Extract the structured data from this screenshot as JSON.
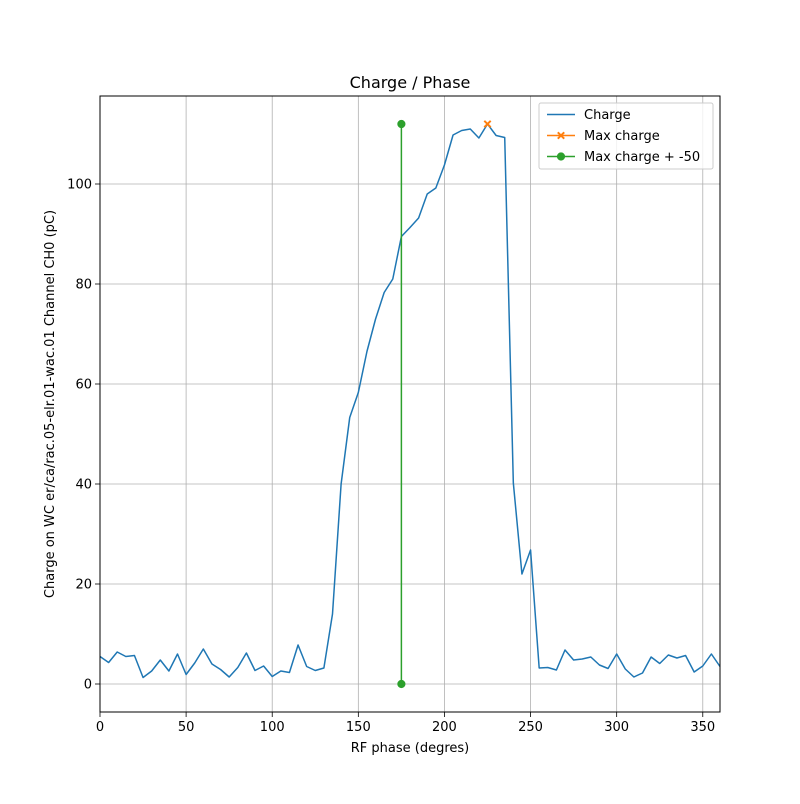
{
  "chart_data": {
    "type": "line",
    "title": "Charge / Phase",
    "xlabel": "RF phase (degres)",
    "ylabel": "Charge on WC er/ca/rac.05-elr.01-wac.01 Channel CH0 (pC)",
    "xlim": [
      0,
      360
    ],
    "ylim": [
      -5.6,
      117.6
    ],
    "x_ticks": [
      0,
      50,
      100,
      150,
      200,
      250,
      300,
      350
    ],
    "y_ticks": [
      0,
      20,
      40,
      60,
      80,
      100
    ],
    "x_tick_labels": [
      "0",
      "50",
      "100",
      "150",
      "200",
      "250",
      "300",
      "350"
    ],
    "y_tick_labels": [
      "0",
      "20",
      "40",
      "60",
      "80",
      "100"
    ],
    "grid": true,
    "legend_position": "top-right",
    "colors": {
      "charge": "#1f77b4",
      "max_charge": "#ff7f0e",
      "max_charge_offset": "#2ca02c",
      "grid": "#b0b0b0"
    },
    "series": [
      {
        "name": "Charge",
        "color": "#1f77b4",
        "marker": "none",
        "x": [
          0,
          5,
          10,
          15,
          20,
          25,
          30,
          35,
          40,
          45,
          50,
          55,
          60,
          65,
          70,
          75,
          80,
          85,
          90,
          95,
          100,
          105,
          110,
          115,
          120,
          125,
          130,
          135,
          140,
          145,
          150,
          155,
          160,
          165,
          170,
          175,
          180,
          185,
          190,
          195,
          200,
          205,
          210,
          215,
          220,
          225,
          230,
          235,
          240,
          245,
          250,
          255,
          260,
          265,
          270,
          275,
          280,
          285,
          290,
          295,
          300,
          305,
          310,
          315,
          320,
          325,
          330,
          335,
          340,
          345,
          350,
          355,
          360
        ],
        "y": [
          5.5,
          4.3,
          6.4,
          5.5,
          5.7,
          1.3,
          2.6,
          4.8,
          2.6,
          6.0,
          1.9,
          4.2,
          7.0,
          4.0,
          2.9,
          1.4,
          3.3,
          6.2,
          2.7,
          3.6,
          1.5,
          2.6,
          2.3,
          7.8,
          3.5,
          2.7,
          3.2,
          14.0,
          40.0,
          53.3,
          58.3,
          66.5,
          73.0,
          78.3,
          81.0,
          89.5,
          91.3,
          93.2,
          98.0,
          99.2,
          103.8,
          109.8,
          110.7,
          111.0,
          109.2,
          112.0,
          109.7,
          109.3,
          40.2,
          22.0,
          26.8,
          3.2,
          3.3,
          2.8,
          6.8,
          4.8,
          5.0,
          5.4,
          3.8,
          3.1,
          6.0,
          3.0,
          1.4,
          2.2,
          5.4,
          4.1,
          5.8,
          5.2,
          5.7,
          2.4,
          3.6,
          6.0,
          3.5
        ]
      },
      {
        "name": "Max charge",
        "color": "#ff7f0e",
        "marker": "x",
        "x": [
          225
        ],
        "y": [
          112.0
        ]
      },
      {
        "name": "Max charge + -50",
        "color": "#2ca02c",
        "marker": "o",
        "x": [
          175,
          175
        ],
        "y": [
          0,
          112.0
        ]
      }
    ]
  }
}
